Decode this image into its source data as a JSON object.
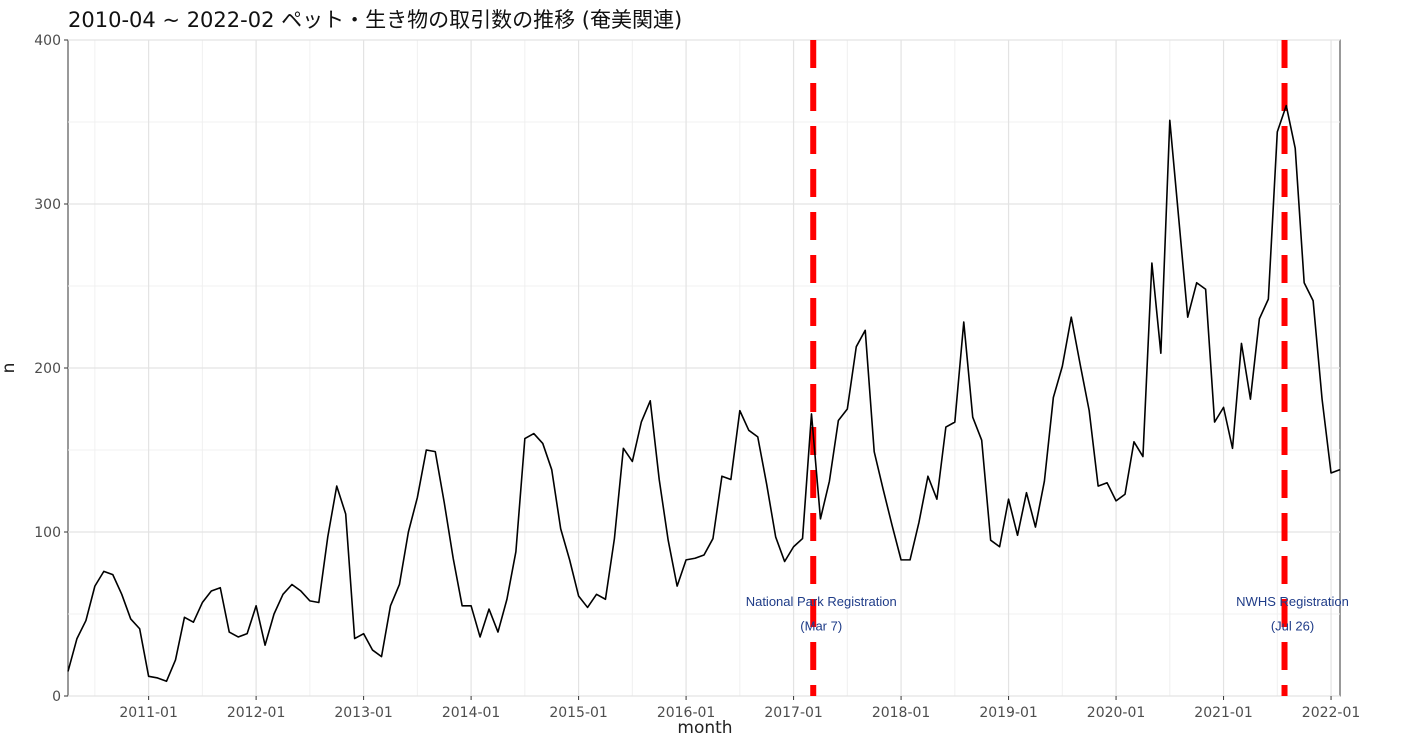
{
  "chart_data": {
    "type": "line",
    "title": "2010-04 ~ 2022-02 ペット・生き物の取引数の推移 (奄美関連)",
    "xlabel": "month",
    "ylabel": "n",
    "ylim": [
      0,
      400
    ],
    "xlim": [
      "2010-04",
      "2022-02"
    ],
    "yticks": [
      0,
      100,
      200,
      300,
      400
    ],
    "xticks": [
      "2011-01",
      "2012-01",
      "2013-01",
      "2014-01",
      "2015-01",
      "2016-01",
      "2017-01",
      "2018-01",
      "2019-01",
      "2020-01",
      "2021-01",
      "2022-01"
    ],
    "grid": true,
    "line_color": "#000000",
    "series": [
      {
        "x": [
          "2010-04",
          "2010-05",
          "2010-06",
          "2010-07",
          "2010-08",
          "2010-09",
          "2010-10",
          "2010-11",
          "2010-12",
          "2011-01",
          "2011-02",
          "2011-03",
          "2011-04",
          "2011-05",
          "2011-06",
          "2011-07",
          "2011-08",
          "2011-09",
          "2011-10",
          "2011-11",
          "2011-12",
          "2012-01",
          "2012-02",
          "2012-03",
          "2012-04",
          "2012-05",
          "2012-06",
          "2012-07",
          "2012-08",
          "2012-09",
          "2012-10",
          "2012-11",
          "2012-12",
          "2013-01",
          "2013-02",
          "2013-03",
          "2013-04",
          "2013-05",
          "2013-06",
          "2013-07",
          "2013-08",
          "2013-09",
          "2013-10",
          "2013-11",
          "2013-12",
          "2014-01",
          "2014-02",
          "2014-03",
          "2014-04",
          "2014-05",
          "2014-06",
          "2014-07",
          "2014-08",
          "2014-09",
          "2014-10",
          "2014-11",
          "2014-12",
          "2015-01",
          "2015-02",
          "2015-03",
          "2015-04",
          "2015-05",
          "2015-06",
          "2015-07",
          "2015-08",
          "2015-09",
          "2015-10",
          "2015-11",
          "2015-12",
          "2016-01",
          "2016-02",
          "2016-03",
          "2016-04",
          "2016-05",
          "2016-06",
          "2016-07",
          "2016-08",
          "2016-09",
          "2016-10",
          "2016-11",
          "2016-12",
          "2017-01",
          "2017-02",
          "2017-03",
          "2017-04",
          "2017-05",
          "2017-06",
          "2017-07",
          "2017-08",
          "2017-09",
          "2017-10",
          "2017-11",
          "2017-12",
          "2018-01",
          "2018-02",
          "2018-03",
          "2018-04",
          "2018-05",
          "2018-06",
          "2018-07",
          "2018-08",
          "2018-09",
          "2018-10",
          "2018-11",
          "2018-12",
          "2019-01",
          "2019-02",
          "2019-03",
          "2019-04",
          "2019-05",
          "2019-06",
          "2019-07",
          "2019-08",
          "2019-09",
          "2019-10",
          "2019-11",
          "2019-12",
          "2020-01",
          "2020-02",
          "2020-03",
          "2020-04",
          "2020-05",
          "2020-06",
          "2020-07",
          "2020-08",
          "2020-09",
          "2020-10",
          "2020-11",
          "2020-12",
          "2021-01",
          "2021-02",
          "2021-03",
          "2021-04",
          "2021-05",
          "2021-06",
          "2021-07",
          "2021-08",
          "2021-09",
          "2021-10",
          "2021-11",
          "2021-12",
          "2022-01",
          "2022-02"
        ],
        "y": [
          15,
          35,
          46,
          67,
          76,
          74,
          62,
          47,
          41,
          12,
          11,
          9,
          22,
          48,
          45,
          57,
          64,
          66,
          39,
          36,
          38,
          55,
          31,
          50,
          62,
          68,
          64,
          58,
          57,
          97,
          128,
          111,
          35,
          38,
          28,
          24,
          55,
          68,
          100,
          121,
          150,
          149,
          118,
          84,
          55,
          55,
          36,
          53,
          39,
          59,
          88,
          157,
          160,
          154,
          138,
          102,
          83,
          61,
          54,
          62,
          59,
          96,
          151,
          143,
          167,
          180,
          132,
          95,
          67,
          83,
          84,
          86,
          96,
          134,
          132,
          174,
          162,
          158,
          129,
          97,
          82,
          91,
          96,
          172,
          108,
          131,
          168,
          175,
          213,
          223,
          149,
          126,
          104,
          83,
          83,
          106,
          134,
          120,
          164,
          167,
          228,
          170,
          156,
          95,
          91,
          120,
          98,
          124,
          103,
          131,
          182,
          201,
          231,
          202,
          174,
          128,
          130,
          119,
          123,
          155,
          146,
          264,
          209,
          351,
          291,
          231,
          252,
          248,
          167,
          176,
          151,
          215,
          181,
          230,
          242,
          344,
          360,
          334,
          252,
          241,
          181,
          136,
          138
        ]
      }
    ],
    "vlines": [
      {
        "x": "2017-03-07",
        "label": "National Park Registration",
        "sublabel": "(Mar 7)",
        "color": "#ff0000"
      },
      {
        "x": "2021-07-26",
        "label": "NWHS Registration",
        "sublabel": "(Jul 26)",
        "color": "#ff0000"
      }
    ],
    "annotation_color": "#1f3c88"
  }
}
